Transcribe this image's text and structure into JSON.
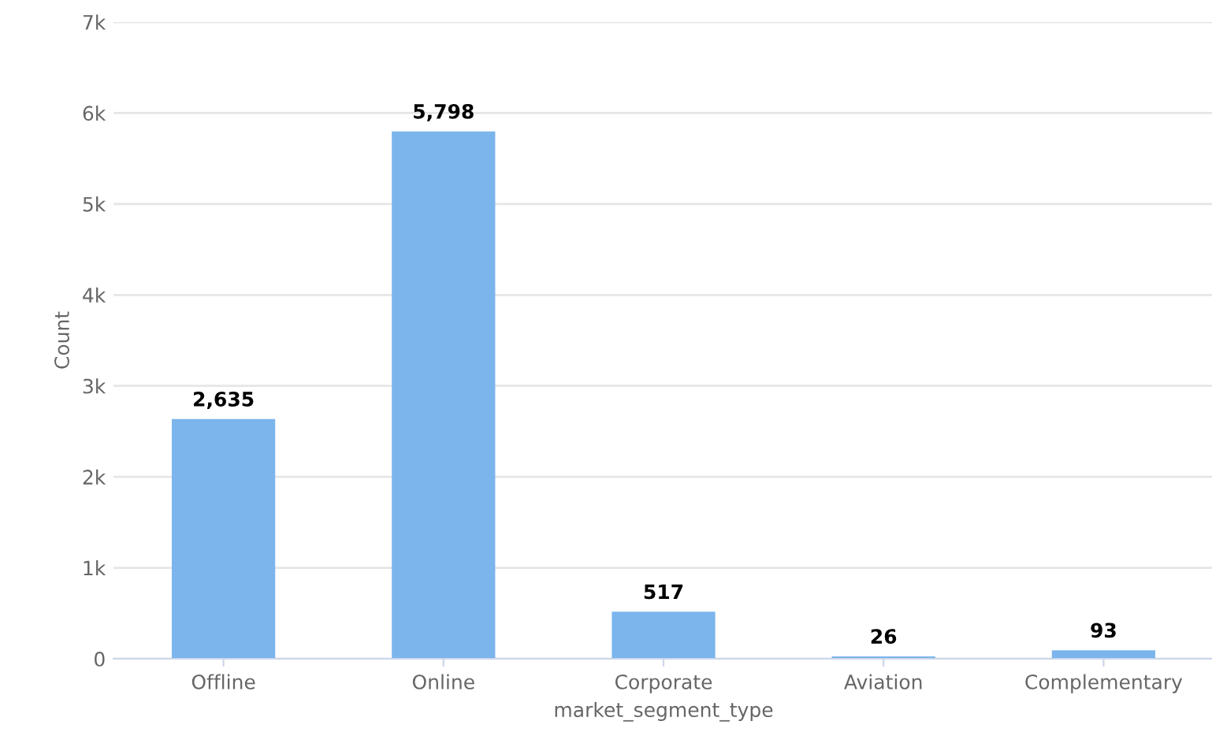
{
  "chart_data": {
    "type": "bar",
    "xlabel": "market_segment_type",
    "ylabel": "Count",
    "categories": [
      "Offline",
      "Online",
      "Corporate",
      "Aviation",
      "Complementary"
    ],
    "values": [
      2635,
      5798,
      517,
      26,
      93
    ],
    "color": "#7cb5ec",
    "value_labels": [
      "2,635",
      "5,798",
      "517",
      "26",
      "93"
    ],
    "ylim": [
      0,
      7000
    ],
    "yticks": [
      0,
      {
        "value": 1000,
        "label": "1k"
      },
      {
        "value": 2000,
        "label": "2k"
      },
      {
        "value": 3000,
        "label": "3k"
      },
      {
        "value": 4000,
        "label": "4k"
      },
      {
        "value": 5000,
        "label": "5k"
      },
      {
        "value": 6000,
        "label": "6k"
      },
      {
        "value": 7000,
        "label": "7k"
      }
    ],
    "grid": "y",
    "legend": false
  }
}
